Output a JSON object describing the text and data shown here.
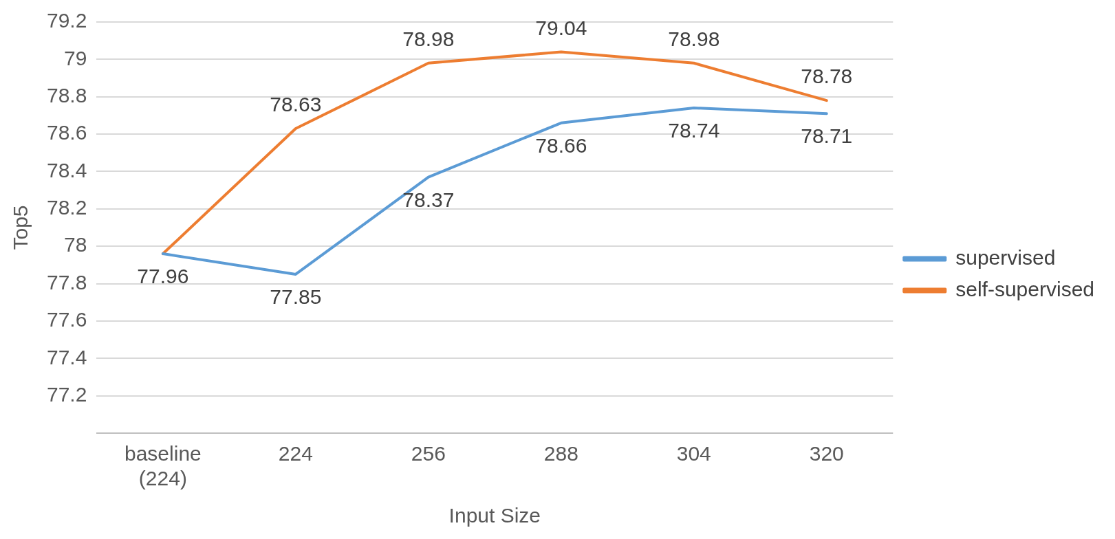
{
  "chart_data": {
    "type": "line",
    "xlabel": "Input Size",
    "ylabel": "Top5",
    "categories": [
      "baseline (224)",
      "224",
      "256",
      "288",
      "304",
      "320"
    ],
    "series": [
      {
        "name": "supervised",
        "color": "#5b9bd5",
        "values": [
          77.96,
          77.85,
          78.37,
          78.66,
          78.74,
          78.71
        ],
        "value_labels": [
          "77.96",
          "77.85",
          "78.37",
          "78.66",
          "78.74",
          "78.71"
        ]
      },
      {
        "name": "self-supervised",
        "color": "#ed7d31",
        "values": [
          77.96,
          78.63,
          78.98,
          79.04,
          78.98,
          78.78
        ],
        "value_labels": [
          null,
          "78.63",
          "78.98",
          "79.04",
          "78.98",
          "78.78"
        ]
      }
    ],
    "ylim": [
      77,
      79.2
    ],
    "yticks": [
      {
        "value": 77,
        "label": null
      },
      77.2,
      77.4,
      77.6,
      77.8,
      78,
      78.2,
      78.4,
      78.6,
      78.8,
      79,
      79.2
    ],
    "grid": "y",
    "legend": "right",
    "marker": "none",
    "line_style": "solid"
  }
}
